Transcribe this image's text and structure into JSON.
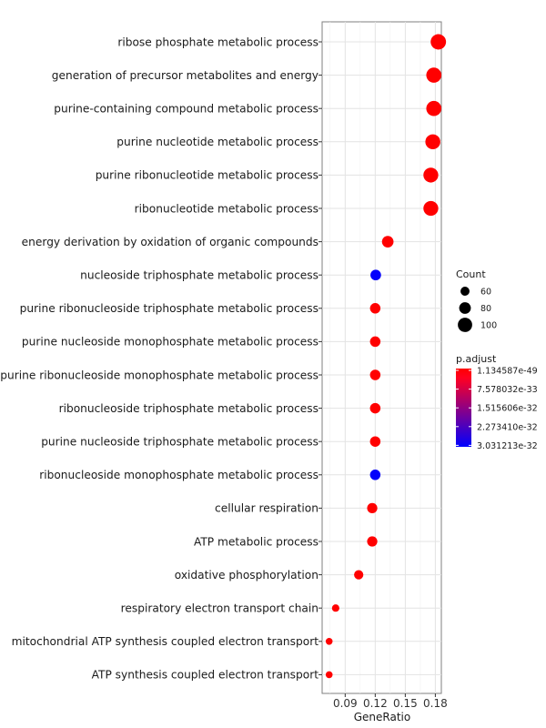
{
  "chart_data": {
    "type": "scatter",
    "xlabel": "GeneRatio",
    "ylabel": "",
    "title": "",
    "xlim": [
      0.067,
      0.186
    ],
    "x_ticks": [
      0.09,
      0.12,
      0.15,
      0.18
    ],
    "x_tick_labels": [
      "0.09",
      "0.12",
      "0.15",
      "0.18"
    ],
    "grid": true,
    "legend_position": "right",
    "points": [
      {
        "term": "ribose phosphate metabolic process",
        "gene_ratio": 0.183,
        "count": 108,
        "p_adjust": 1.1e-49
      },
      {
        "term": "generation of precursor metabolites and energy",
        "gene_ratio": 0.1785,
        "count": 106,
        "p_adjust": 1.3e-49
      },
      {
        "term": "purine-containing compound metabolic process",
        "gene_ratio": 0.1785,
        "count": 106,
        "p_adjust": 1.3e-49
      },
      {
        "term": "purine nucleotide metabolic process",
        "gene_ratio": 0.1775,
        "count": 105,
        "p_adjust": 1.5e-49
      },
      {
        "term": "purine ribonucleotide metabolic process",
        "gene_ratio": 0.1755,
        "count": 104,
        "p_adjust": 1.8e-49
      },
      {
        "term": "ribonucleotide metabolic process",
        "gene_ratio": 0.1755,
        "count": 104,
        "p_adjust": 1.8e-49
      },
      {
        "term": "energy derivation by oxidation of organic compounds",
        "gene_ratio": 0.1325,
        "count": 79,
        "p_adjust": 2e-36
      },
      {
        "term": "nucleoside triphosphate metabolic process",
        "gene_ratio": 0.1205,
        "count": 72,
        "p_adjust": 3e-32
      },
      {
        "term": "purine ribonucleoside triphosphate metabolic process",
        "gene_ratio": 0.12,
        "count": 71,
        "p_adjust": 1e-40
      },
      {
        "term": "purine nucleoside monophosphate metabolic process",
        "gene_ratio": 0.12,
        "count": 71,
        "p_adjust": 1e-40
      },
      {
        "term": "purine ribonucleoside monophosphate metabolic process",
        "gene_ratio": 0.12,
        "count": 71,
        "p_adjust": 1e-40
      },
      {
        "term": "ribonucleoside triphosphate metabolic process",
        "gene_ratio": 0.12,
        "count": 71,
        "p_adjust": 1e-40
      },
      {
        "term": "purine nucleoside triphosphate metabolic process",
        "gene_ratio": 0.12,
        "count": 71,
        "p_adjust": 1e-40
      },
      {
        "term": "ribonucleoside monophosphate metabolic process",
        "gene_ratio": 0.12,
        "count": 71,
        "p_adjust": 3e-32
      },
      {
        "term": "cellular respiration",
        "gene_ratio": 0.117,
        "count": 69,
        "p_adjust": 1e-40
      },
      {
        "term": "ATP metabolic process",
        "gene_ratio": 0.117,
        "count": 69,
        "p_adjust": 1e-40
      },
      {
        "term": "oxidative phosphorylation",
        "gene_ratio": 0.1035,
        "count": 62,
        "p_adjust": 1e-40
      },
      {
        "term": "respiratory electron transport chain",
        "gene_ratio": 0.0805,
        "count": 48,
        "p_adjust": 1e-40
      },
      {
        "term": "mitochondrial ATP synthesis coupled electron transport",
        "gene_ratio": 0.074,
        "count": 44,
        "p_adjust": 1e-40
      },
      {
        "term": "ATP synthesis coupled electron transport",
        "gene_ratio": 0.074,
        "count": 44,
        "p_adjust": 1e-40
      }
    ],
    "legend_size": {
      "title": "Count",
      "labels": [
        "60",
        "80",
        "100"
      ],
      "values": [
        60,
        80,
        100
      ]
    },
    "legend_color": {
      "title": "p.adjust",
      "labels": [
        "1.134587e-49",
        "7.578032e-33",
        "1.515606e-32",
        "2.273410e-32",
        "3.031213e-32"
      ],
      "low_color": "#ff0000",
      "high_color": "#0000ff"
    }
  }
}
